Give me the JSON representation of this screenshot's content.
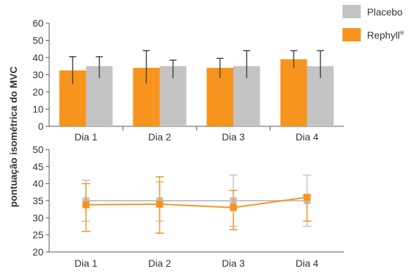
{
  "colors": {
    "placebo": "#c4c4c4",
    "rephyll": "#f7941d",
    "axis": "#555555",
    "error": "#444444"
  },
  "legend": [
    {
      "key": "placebo",
      "label": "Placebo"
    },
    {
      "key": "rephyll",
      "label": "Rephyll",
      "mark": "®"
    }
  ],
  "y_axis_label": "pontuação isométrica do MVC",
  "chart_data": [
    {
      "type": "bar",
      "categories": [
        "Dia 1",
        "Dia 2",
        "Dia 3",
        "Dia 4"
      ],
      "ylim": [
        0,
        60
      ],
      "yticks": [
        0,
        10,
        20,
        30,
        40,
        50,
        60
      ],
      "grid": false,
      "series": [
        {
          "name": "Rephyll®",
          "values": [
            32.5,
            34,
            34,
            39
          ],
          "err_low": [
            24.5,
            25,
            28,
            34
          ],
          "err_high": [
            40.5,
            44,
            39.5,
            44
          ]
        },
        {
          "name": "Placebo",
          "values": [
            35,
            35,
            35,
            35
          ],
          "err_low": [
            28,
            28,
            28,
            28
          ],
          "err_high": [
            40.5,
            38.5,
            44,
            44
          ]
        }
      ]
    },
    {
      "type": "line",
      "categories": [
        "Dia 1",
        "Dia 2",
        "Dia 3",
        "Dia 4"
      ],
      "ylim": [
        20,
        50
      ],
      "yticks": [
        20,
        25,
        30,
        35,
        40,
        45,
        50
      ],
      "grid": false,
      "series": [
        {
          "name": "Placebo",
          "values": [
            35,
            35,
            35,
            35
          ],
          "err_low": [
            29,
            29,
            27.5,
            27.5
          ],
          "err_high": [
            41,
            40.5,
            42.5,
            42.5
          ]
        },
        {
          "name": "Rephyll®",
          "values": [
            33.8,
            34,
            33,
            36
          ],
          "err_low": [
            26,
            25.5,
            26.5,
            29
          ],
          "err_high": [
            40,
            42,
            38,
            36.5
          ]
        }
      ]
    }
  ]
}
